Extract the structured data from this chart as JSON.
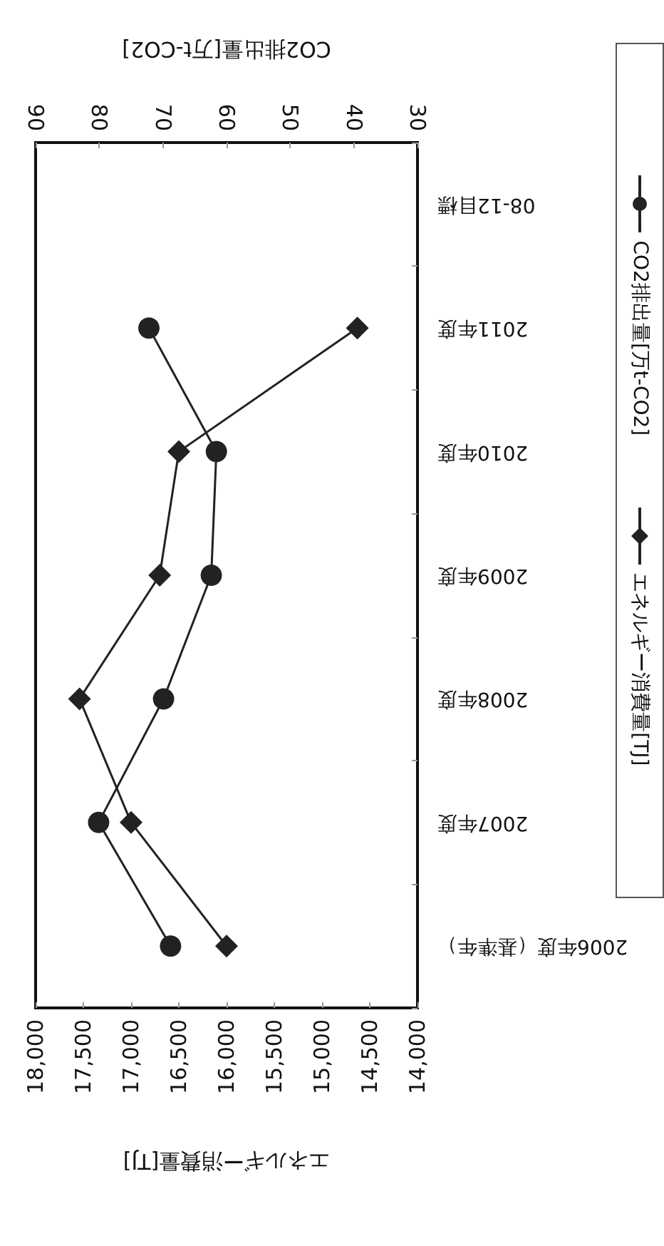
{
  "chart_data": {
    "type": "line",
    "orientation": "horizontal",
    "xlabel": "エネルギー消費量[TJ]",
    "x2label": "CO2排出量[万t-CO2]",
    "categories": [
      "08-12目標",
      "2011年度",
      "2010年度",
      "2009年度",
      "2008年度",
      "2007年度",
      "2006年度（基準年）"
    ],
    "series": [
      {
        "name": "CO2排出量[万t-CO2]",
        "color": "#222222",
        "marker": "circle",
        "axis": "x2",
        "values": [
          null,
          72.2,
          61.6,
          62.4,
          69.9,
          80.1,
          68.8
        ]
      },
      {
        "name": "エネルギー消費量[TJ]",
        "color": "#222222",
        "marker": "diamond",
        "values": [
          null,
          14630,
          16500,
          16700,
          17540,
          17000,
          16000
        ]
      }
    ],
    "xlim": [
      18000,
      14000
    ],
    "xticks": [
      {
        "value": 18000,
        "label": "18,000"
      },
      {
        "value": 17500,
        "label": "17,500"
      },
      {
        "value": 17000,
        "label": "17,000"
      },
      {
        "value": 16500,
        "label": "16,500"
      },
      {
        "value": 16000,
        "label": "16,000"
      },
      {
        "value": 15500,
        "label": "15,500"
      },
      {
        "value": 15000,
        "label": "15,000"
      },
      {
        "value": 14500,
        "label": "14,500"
      },
      {
        "value": 14000,
        "label": "14,000"
      }
    ],
    "x2lim": [
      90,
      30
    ],
    "x2ticks": [
      90,
      80,
      70,
      60,
      50,
      40,
      30
    ],
    "grid": false,
    "legend": "right",
    "line_style": "solid"
  }
}
